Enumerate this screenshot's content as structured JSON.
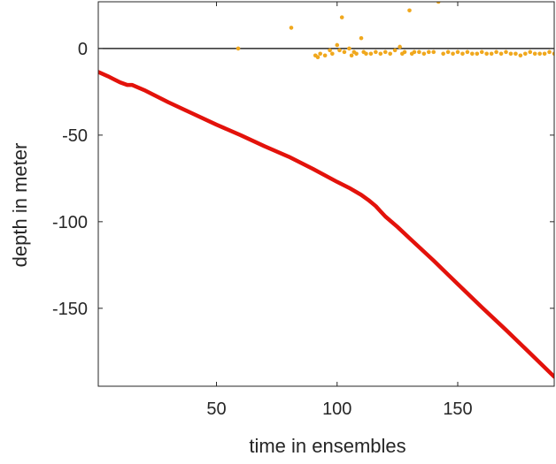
{
  "chart_data": {
    "type": "scatter",
    "title": "",
    "xlabel": "time in ensembles",
    "ylabel": "depth in meter",
    "xlim": [
      1,
      190
    ],
    "ylim": [
      -195,
      27
    ],
    "xticks": [
      50,
      100,
      150
    ],
    "yticks": [
      0,
      -50,
      -100,
      -150
    ],
    "grid": false,
    "zero_line": 0,
    "colors": {
      "depth": "#e3120b",
      "scatter": "#f0a81e",
      "axes": "#262626",
      "zero_line": "#000000"
    },
    "series": [
      {
        "style": "thick-line",
        "x": [
          1,
          5,
          10,
          13,
          15,
          20,
          30,
          40,
          50,
          60,
          70,
          80,
          90,
          100,
          105,
          110,
          113,
          116,
          118,
          120,
          125,
          130,
          140,
          150,
          160,
          170,
          180,
          190
        ],
        "y": [
          -13.5,
          -16,
          -19.5,
          -21,
          -21,
          -24,
          -31,
          -37.5,
          -44,
          -50,
          -56.5,
          -62.5,
          -69.5,
          -77,
          -80.5,
          -84.5,
          -87.5,
          -91,
          -94,
          -97,
          -103,
          -109.5,
          -122.5,
          -136,
          -149.5,
          -162.5,
          -176,
          -189.5
        ]
      },
      {
        "style": "points",
        "x": [
          59,
          81,
          91,
          92,
          93,
          95,
          97,
          98,
          100,
          101,
          102,
          103,
          105,
          106,
          107,
          108,
          110,
          111,
          112,
          114,
          116,
          118,
          120,
          122,
          124,
          126,
          127,
          128,
          130,
          131,
          132,
          134,
          136,
          138,
          140,
          142,
          144,
          146,
          148,
          150,
          152,
          154,
          156,
          158,
          160,
          162,
          164,
          166,
          168,
          170,
          172,
          174,
          176,
          178,
          180,
          182,
          184,
          186,
          188,
          190
        ],
        "y": [
          0,
          12,
          -4,
          -5,
          -3,
          -4,
          -1,
          -3,
          2,
          -1,
          18,
          -2,
          0,
          -4,
          -2,
          -3,
          6,
          -2,
          -3,
          -3,
          -2,
          -3,
          -2,
          -3,
          -1,
          1,
          -3,
          -2,
          22,
          -3,
          -2,
          -2,
          -3,
          -2,
          -2,
          27,
          -3,
          -2,
          -3,
          -2,
          -3,
          -2,
          -3,
          -3,
          -2,
          -3,
          -3,
          -2,
          -3,
          -2,
          -3,
          -3,
          -4,
          -3,
          -2,
          -3,
          -3,
          -3,
          -2,
          -3
        ]
      }
    ]
  }
}
